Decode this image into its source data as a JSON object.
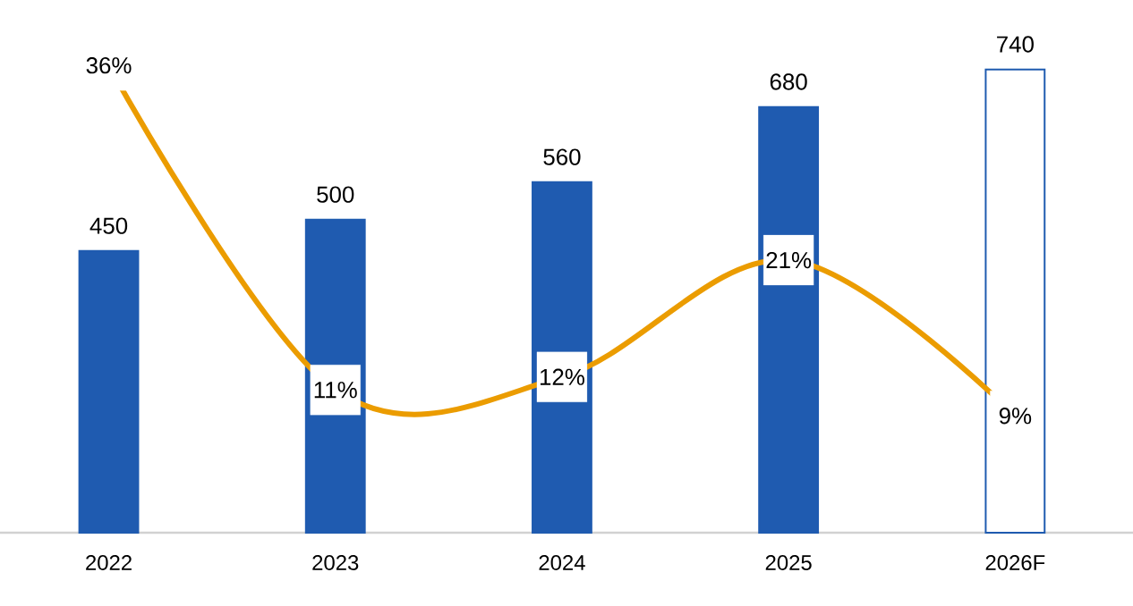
{
  "chart_data": {
    "type": "bar",
    "categories": [
      "2022",
      "2023",
      "2024",
      "2025",
      "2026F"
    ],
    "data_labels": true,
    "series": [
      {
        "color": "#1f5bb0",
        "colors": [
          "#1f5bb0",
          "#1f5bb0",
          "#1f5bb0",
          "#1f5bb0",
          "#ffffff"
        ],
        "values": [
          450,
          500,
          560,
          680,
          740
        ]
      },
      {
        "type": "line",
        "axis": "y2",
        "marker": "square",
        "color": "#eb9c00",
        "values": [
          36,
          11,
          12,
          21,
          9
        ],
        "value_labels": [
          "36%",
          "11%",
          "12%",
          "21%",
          "9%"
        ]
      }
    ]
  }
}
